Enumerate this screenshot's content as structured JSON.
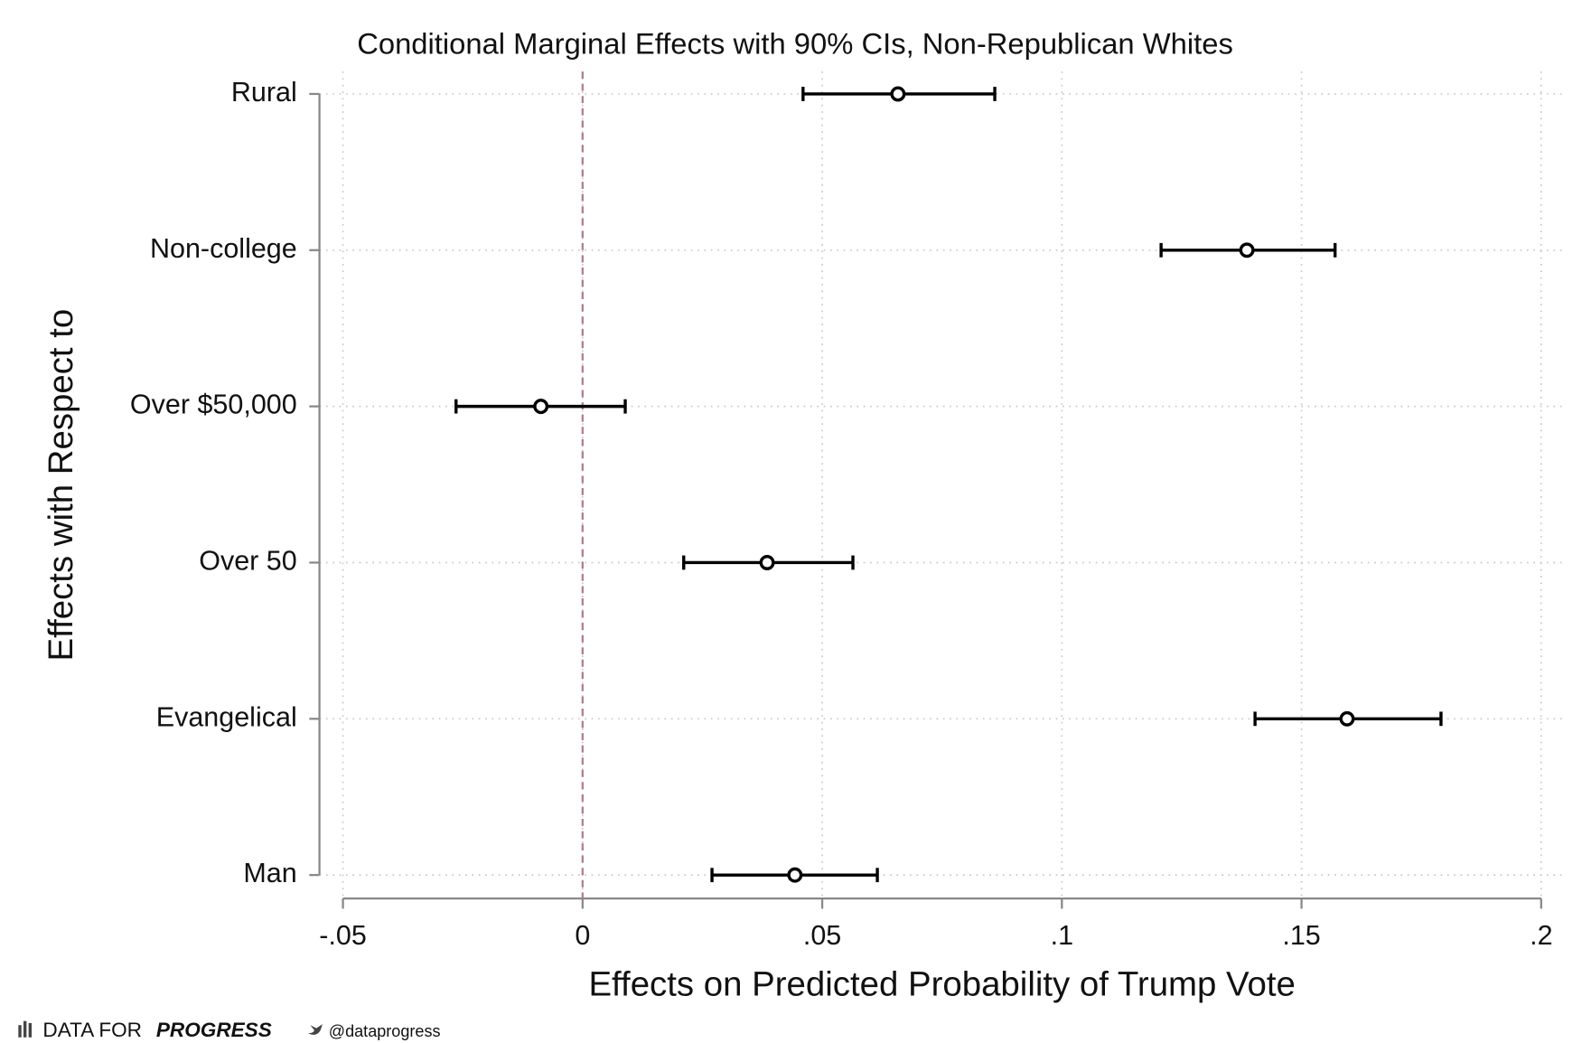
{
  "chart_data": {
    "type": "errorbar",
    "title": "Conditional Marginal Effects with 90% CIs, Non-Republican Whites",
    "x_label": "Effects on Predicted Probability of Trump Vote",
    "y_label": "Effects with Respect to",
    "categories": [
      "Rural",
      "Non-college",
      "Over $50,000",
      "Over 50",
      "Evangelical",
      "Man"
    ],
    "values": [
      0.0658,
      0.1386,
      -0.0087,
      0.0385,
      0.1595,
      0.0443
    ],
    "lower": [
      0.046,
      0.1207,
      -0.0264,
      0.0211,
      0.1403,
      0.027
    ],
    "upper": [
      0.086,
      0.157,
      0.0089,
      0.0564,
      0.1791,
      0.0615
    ],
    "color": "#000000",
    "xlim": [
      -0.05,
      0.2
    ],
    "xticks": [
      {
        "value": -0.05,
        "label": "-.05"
      },
      0,
      {
        "value": 0.05,
        "label": ".05"
      },
      {
        "value": 0.1,
        "label": ".1"
      },
      {
        "value": 0.15,
        "label": ".15"
      },
      {
        "value": 0.2,
        "label": ".2"
      }
    ],
    "reference_line": {
      "value": 0,
      "color": "#b07d8c"
    },
    "grid": true
  },
  "branding": {
    "name": "DATA FOR",
    "name_bold": "PROGRESS",
    "handle": "@dataprogress"
  }
}
